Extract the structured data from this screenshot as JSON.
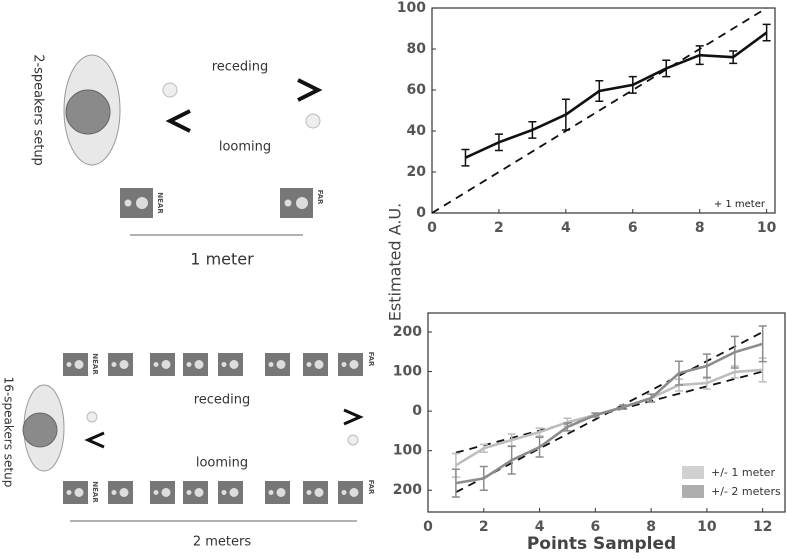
{
  "chart_data": [
    {
      "type": "line",
      "x": [
        1,
        2,
        3,
        4,
        5,
        6,
        7,
        8,
        9,
        10
      ],
      "series": [
        {
          "color": "#111111",
          "values": [
            27,
            34.5,
            40.5,
            48,
            59.5,
            62.5,
            70.5,
            77,
            76,
            88
          ],
          "errors": [
            4,
            4,
            4,
            7.5,
            5,
            4,
            4,
            4.5,
            3,
            4
          ]
        }
      ],
      "reference_lines": [
        {
          "color": "#111111",
          "x": [
            0,
            10
          ],
          "values": [
            0,
            100
          ]
        }
      ],
      "xlim": [
        0,
        10.25
      ],
      "ylim": [
        0,
        100
      ],
      "xticks": [
        0,
        2,
        4,
        6,
        8,
        10
      ],
      "yticks": [
        0,
        20,
        40,
        60,
        80,
        100
      ],
      "annotation": "+ 1 meter",
      "ylabel": "Estimated A.U."
    },
    {
      "type": "line",
      "x": [
        1,
        2,
        3,
        4,
        5,
        6,
        7,
        8,
        9,
        10,
        11,
        12
      ],
      "series": [
        {
          "name": "+/- 1 meter",
          "color": "#bdbdbd",
          "values": [
            -137,
            -94,
            -73,
            -53,
            -28,
            -10,
            10,
            33,
            66,
            71,
            99,
            104
          ],
          "errors": [
            30,
            10,
            15,
            10,
            10,
            5,
            5,
            10,
            15,
            15,
            15,
            30
          ]
        },
        {
          "name": "+/- 2 meters",
          "color": "#8c8c8c",
          "values": [
            -182,
            -170,
            -124,
            -91,
            -40,
            -10,
            10,
            33,
            96,
            114,
            149,
            170
          ],
          "errors": [
            35,
            30,
            35,
            25,
            10,
            5,
            5,
            10,
            30,
            30,
            40,
            45
          ]
        }
      ],
      "reference_lines": [
        {
          "color": "#111111",
          "x": [
            1,
            12
          ],
          "values": [
            -105,
            100
          ]
        },
        {
          "color": "#111111",
          "x": [
            1,
            12
          ],
          "values": [
            -205,
            200
          ]
        }
      ],
      "xlim": [
        0,
        12.8
      ],
      "ylim": [
        -255,
        248
      ],
      "xticks": [
        0,
        2,
        4,
        6,
        8,
        10,
        12
      ],
      "yticks": [
        {
          "value": -200,
          "label": "200"
        },
        {
          "value": -100,
          "label": "100"
        },
        0,
        100,
        200
      ],
      "xlabel": "Points Sampled",
      "legend": "lower right"
    }
  ],
  "diagrams": [
    {
      "title": "2-speakers setup",
      "receding": "receding",
      "looming": "looming",
      "near": "NEAR",
      "far": "FAR",
      "distance": "1 meter"
    },
    {
      "title": "16-speakers setup",
      "receding": "receding",
      "looming": "looming",
      "near": "NEAR",
      "far": "FAR",
      "distance": "2 meters"
    }
  ]
}
